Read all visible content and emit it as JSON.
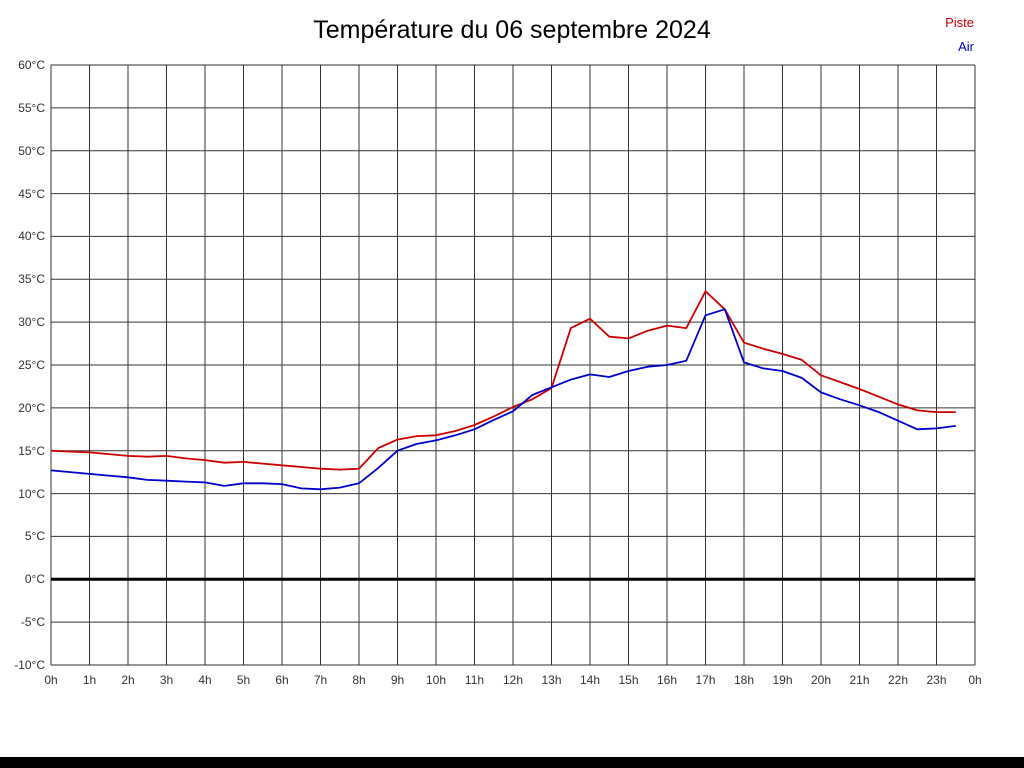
{
  "chart_data": {
    "type": "line",
    "title": "Température du 06 septembre 2024",
    "xlabel": "",
    "ylabel": "",
    "xlim": [
      0,
      24
    ],
    "ylim": [
      -10,
      60
    ],
    "y_step": 5,
    "grid": true,
    "zero_line": true,
    "legend_position": "top-right",
    "legend": [
      {
        "name": "Piste",
        "color": "#cc0000"
      },
      {
        "name": "Air",
        "color": "#0000cc"
      }
    ],
    "y_tick_labels": [
      "60°C",
      "55°C",
      "50°C",
      "45°C",
      "40°C",
      "35°C",
      "30°C",
      "25°C",
      "20°C",
      "15°C",
      "10°C",
      "5°C",
      "0°C",
      "-5°C",
      "-10°C"
    ],
    "x_tick_labels": [
      "0h",
      "1h",
      "2h",
      "3h",
      "4h",
      "5h",
      "6h",
      "7h",
      "8h",
      "9h",
      "10h",
      "11h",
      "12h",
      "13h",
      "14h",
      "15h",
      "16h",
      "17h",
      "18h",
      "19h",
      "20h",
      "21h",
      "22h",
      "23h",
      "0h"
    ],
    "x": [
      0,
      0.5,
      1,
      1.5,
      2,
      2.5,
      3,
      3.5,
      4,
      4.5,
      5,
      5.5,
      6,
      6.5,
      7,
      7.5,
      8,
      8.5,
      9,
      9.5,
      10,
      10.5,
      11,
      11.5,
      12,
      12.5,
      13,
      13.5,
      14,
      14.5,
      15,
      15.5,
      16,
      16.5,
      17,
      17.5,
      18,
      18.5,
      19,
      19.5,
      20,
      20.5,
      21,
      21.5,
      22,
      22.5,
      23,
      23.5
    ],
    "series": [
      {
        "name": "Piste",
        "color": "#cc0000",
        "values": [
          15.0,
          14.9,
          14.8,
          14.6,
          14.4,
          14.3,
          14.4,
          14.1,
          13.9,
          13.6,
          13.7,
          13.5,
          13.3,
          13.1,
          12.9,
          12.8,
          12.9,
          15.3,
          16.3,
          16.7,
          16.8,
          17.3,
          18.0,
          19.0,
          20.1,
          21.0,
          22.3,
          29.3,
          30.4,
          28.3,
          28.1,
          29.0,
          29.6,
          29.3,
          33.6,
          31.5,
          27.6,
          26.9,
          26.3,
          25.6,
          23.8,
          23.0,
          22.2,
          21.3,
          20.4,
          19.7,
          19.5,
          19.5
        ]
      },
      {
        "name": "Air",
        "color": "#0000cc",
        "values": [
          12.7,
          12.5,
          12.3,
          12.1,
          11.9,
          11.6,
          11.5,
          11.4,
          11.3,
          10.9,
          11.2,
          11.2,
          11.1,
          10.6,
          10.5,
          10.7,
          11.2,
          13.0,
          15.0,
          15.8,
          16.2,
          16.8,
          17.5,
          18.6,
          19.6,
          21.5,
          22.4,
          23.3,
          23.9,
          23.6,
          24.3,
          24.8,
          25.0,
          25.5,
          30.8,
          31.5,
          25.3,
          24.6,
          24.3,
          23.5,
          21.8,
          21.0,
          20.3,
          19.5,
          18.5,
          17.5,
          17.6,
          17.9
        ]
      }
    ]
  }
}
